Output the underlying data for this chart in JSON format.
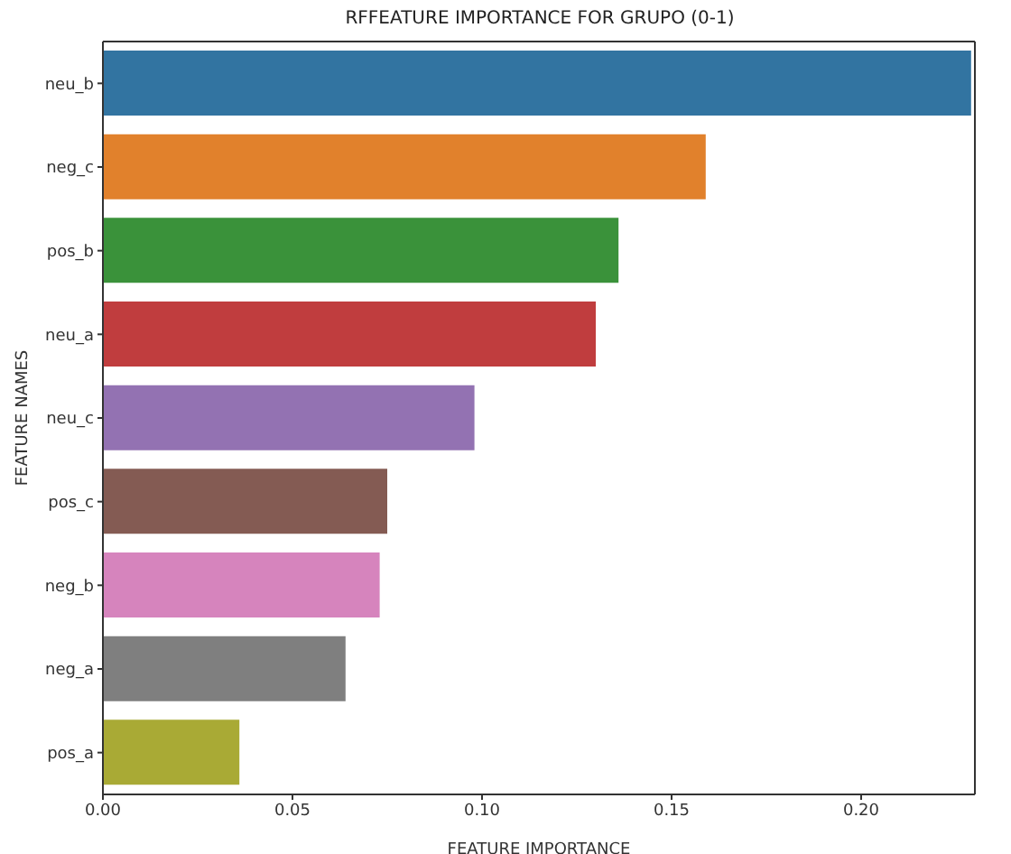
{
  "chart_data": {
    "type": "bar",
    "orientation": "horizontal",
    "title": "RFFEATURE IMPORTANCE FOR GRUPO (0-1)",
    "xlabel": "FEATURE IMPORTANCE",
    "ylabel": "FEATURE NAMES",
    "categories": [
      "neu_b",
      "neg_c",
      "pos_b",
      "neu_a",
      "neu_c",
      "pos_c",
      "neg_b",
      "neg_a",
      "pos_a"
    ],
    "values": [
      0.229,
      0.159,
      0.136,
      0.13,
      0.098,
      0.075,
      0.073,
      0.064,
      0.036
    ],
    "colors": [
      "#3274a1",
      "#e1812c",
      "#3a923a",
      "#c03d3e",
      "#9372b2",
      "#845b53",
      "#d684bd",
      "#7f7f7f",
      "#a9aa35"
    ],
    "xlim": [
      0,
      0.23
    ],
    "xticks": [
      {
        "value": 0,
        "label": "0.00"
      },
      {
        "value": 0.05,
        "label": "0.05"
      },
      {
        "value": 0.1,
        "label": "0.10"
      },
      {
        "value": 0.15,
        "label": "0.15"
      },
      {
        "value": 0.2,
        "label": "0.20"
      }
    ],
    "grid": false,
    "legend": false
  }
}
